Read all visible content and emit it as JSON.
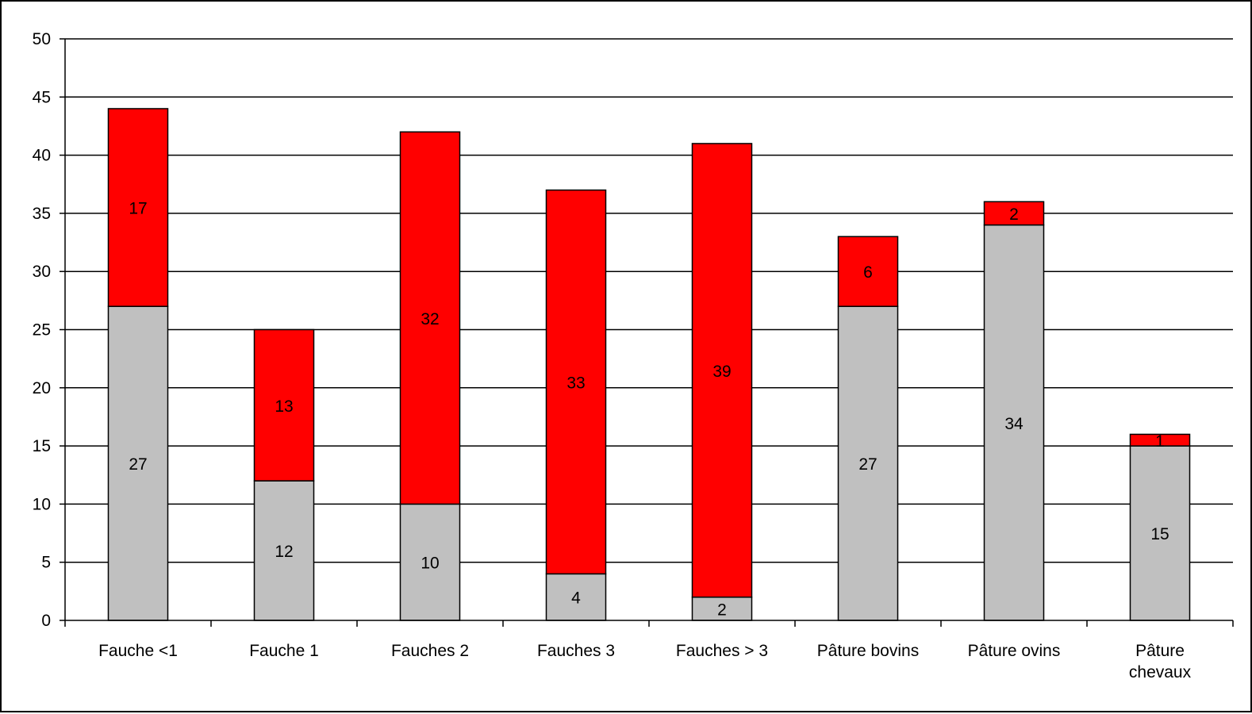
{
  "chart_data": {
    "type": "bar",
    "stacked": true,
    "title": "",
    "xlabel": "",
    "ylabel": "",
    "ylim": [
      0,
      50
    ],
    "yticks": [
      0,
      5,
      10,
      15,
      20,
      25,
      30,
      35,
      40,
      45,
      50
    ],
    "grid": true,
    "legend": "none",
    "categories": [
      [
        "Fauche <1"
      ],
      [
        "Fauche 1"
      ],
      [
        "Fauches 2"
      ],
      [
        "Fauches 3"
      ],
      [
        "Fauches > 3"
      ],
      [
        "Pâture bovins"
      ],
      [
        "Pâture ovins"
      ],
      [
        "Pâture",
        "chevaux"
      ]
    ],
    "series": [
      {
        "color": "#c0c0c0",
        "values": [
          27,
          12,
          10,
          4,
          2,
          27,
          34,
          15
        ]
      },
      {
        "color": "#ff0000",
        "values": [
          17,
          13,
          32,
          33,
          39,
          6,
          2,
          1
        ]
      }
    ]
  }
}
